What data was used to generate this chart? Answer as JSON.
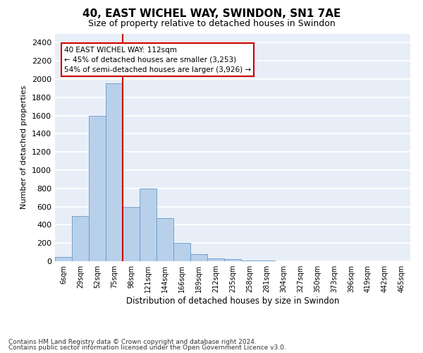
{
  "title": "40, EAST WICHEL WAY, SWINDON, SN1 7AE",
  "subtitle": "Size of property relative to detached houses in Swindon",
  "xlabel": "Distribution of detached houses by size in Swindon",
  "ylabel": "Number of detached properties",
  "bar_labels": [
    "6sqm",
    "29sqm",
    "52sqm",
    "75sqm",
    "98sqm",
    "121sqm",
    "144sqm",
    "166sqm",
    "189sqm",
    "212sqm",
    "235sqm",
    "258sqm",
    "281sqm",
    "304sqm",
    "327sqm",
    "350sqm",
    "373sqm",
    "396sqm",
    "419sqm",
    "442sqm",
    "465sqm"
  ],
  "bar_values": [
    50,
    500,
    1600,
    1950,
    600,
    800,
    470,
    200,
    80,
    30,
    20,
    5,
    5,
    0,
    0,
    0,
    0,
    0,
    0,
    0,
    0
  ],
  "bar_color": "#b8d0ea",
  "bar_edge_color": "#6699cc",
  "vline_x": 4,
  "vline_color": "#cc0000",
  "annotation_text": "40 EAST WICHEL WAY: 112sqm\n← 45% of detached houses are smaller (3,253)\n54% of semi-detached houses are larger (3,926) →",
  "ylim": [
    0,
    2500
  ],
  "yticks": [
    0,
    200,
    400,
    600,
    800,
    1000,
    1200,
    1400,
    1600,
    1800,
    2000,
    2200,
    2400
  ],
  "plot_bg_color": "#e8eef7",
  "footnote1": "Contains HM Land Registry data © Crown copyright and database right 2024.",
  "footnote2": "Contains public sector information licensed under the Open Government Licence v3.0."
}
